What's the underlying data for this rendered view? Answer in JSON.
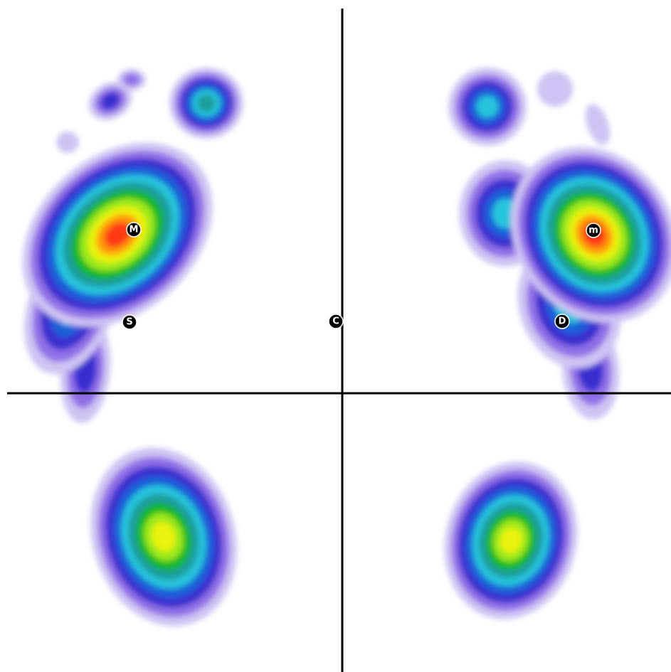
{
  "markers": [
    {
      "label": "M"
    },
    {
      "label": "S"
    },
    {
      "label": "C"
    },
    {
      "label": "m"
    },
    {
      "label": "D"
    }
  ]
}
